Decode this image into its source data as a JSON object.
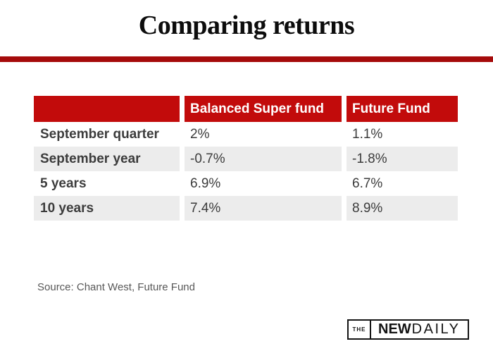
{
  "header": {
    "title": "Comparing returns"
  },
  "chart_data": {
    "type": "table",
    "title": "Comparing returns",
    "columns": [
      "",
      "Balanced Super fund",
      "Future Fund"
    ],
    "rows": [
      {
        "label": "September quarter",
        "values": [
          "2%",
          "1.1%"
        ]
      },
      {
        "label": "September year",
        "values": [
          "-0.7%",
          "-1.8%"
        ]
      },
      {
        "label": "5 years",
        "values": [
          "6.9%",
          "6.7%"
        ]
      },
      {
        "label": "10 years",
        "values": [
          "7.4%",
          "8.9%"
        ]
      }
    ],
    "source": "Source: Chant West, Future Fund"
  },
  "logo": {
    "the": "THE",
    "new": "NEW",
    "daily": "DAILY"
  },
  "colors": {
    "top_bar_red": "#a50b0b",
    "table_header_red": "#c20b0b",
    "row_alt_gray": "#ececec",
    "body_text": "#3c3c3c",
    "source_text": "#585858",
    "logo_black": "#141414"
  }
}
